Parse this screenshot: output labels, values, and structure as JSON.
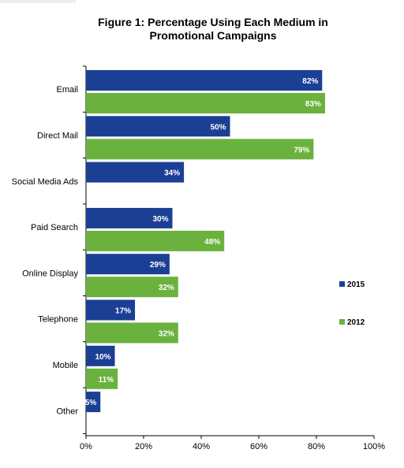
{
  "chart_data": {
    "type": "bar",
    "orientation": "horizontal",
    "title_line1": "Figure 1: Percentage Using Each Medium in",
    "title_line2": "Promotional Campaigns",
    "categories": [
      "Email",
      "Direct Mail",
      "Social Media Ads",
      "Paid Search",
      "Online Display",
      "Telephone",
      "Mobile",
      "Other"
    ],
    "series": [
      {
        "name": "2015",
        "color": "#1b3f94",
        "values": [
          82,
          50,
          34,
          30,
          29,
          17,
          10,
          5
        ]
      },
      {
        "name": "2012",
        "color": "#6ab23d",
        "values": [
          83,
          79,
          null,
          48,
          32,
          32,
          11,
          null
        ]
      }
    ],
    "xlim": [
      0,
      100
    ],
    "xticks": [
      "0%",
      "20%",
      "40%",
      "60%",
      "80%",
      "100%"
    ],
    "xtick_values": [
      0,
      20,
      40,
      60,
      80,
      100
    ],
    "value_suffix": "%",
    "legend_placement": "right",
    "grid": false
  }
}
